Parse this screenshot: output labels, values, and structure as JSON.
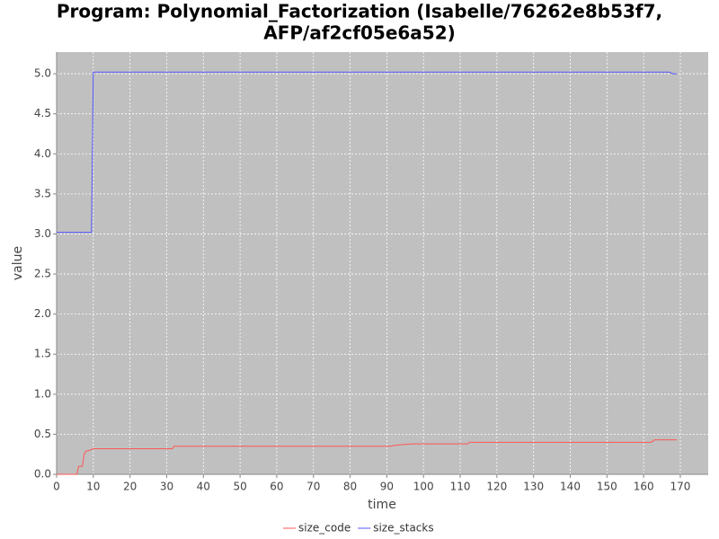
{
  "chart_data": {
    "type": "line",
    "title": [
      "Program: Polynomial_Factorization (Isabelle/76262e8b53f7,",
      "AFP/af2cf05e6a52)"
    ],
    "x_label": "time",
    "y_label": "value",
    "xlim": [
      0,
      177.6
    ],
    "ylim": [
      0,
      5.27
    ],
    "xticks": [
      0,
      10,
      20,
      30,
      40,
      50,
      60,
      70,
      80,
      90,
      100,
      110,
      120,
      130,
      140,
      150,
      160,
      170
    ],
    "yticks": [
      {
        "value": 0,
        "label": "0.0"
      },
      {
        "value": 0.5,
        "label": "0.5"
      },
      {
        "value": 1,
        "label": "1.0"
      },
      {
        "value": 1.5,
        "label": "1.5"
      },
      {
        "value": 2,
        "label": "2.0"
      },
      {
        "value": 2.5,
        "label": "2.5"
      },
      {
        "value": 3,
        "label": "3.0"
      },
      {
        "value": 3.5,
        "label": "3.5"
      },
      {
        "value": 4,
        "label": "4.0"
      },
      {
        "value": 4.5,
        "label": "4.5"
      },
      {
        "value": 5,
        "label": "5.0"
      }
    ],
    "grid": true,
    "legend": "bottom",
    "series": [
      {
        "name": "size_code",
        "color": "#ff5555",
        "x": [
          0,
          5.5,
          6,
          7,
          7.5,
          8,
          9,
          10,
          31.5,
          32,
          91,
          92,
          94,
          97,
          112,
          112.5,
          162,
          163,
          169
        ],
        "values": [
          0,
          0,
          0.1,
          0.1,
          0.25,
          0.29,
          0.3,
          0.32,
          0.32,
          0.35,
          0.35,
          0.36,
          0.37,
          0.38,
          0.38,
          0.4,
          0.4,
          0.43,
          0.43
        ]
      },
      {
        "name": "size_stacks",
        "color": "#5555ff",
        "x": [
          0,
          9.5,
          10,
          167,
          168,
          169
        ],
        "values": [
          3.02,
          3.02,
          5.02,
          5.02,
          5.0,
          5.0
        ]
      }
    ]
  }
}
